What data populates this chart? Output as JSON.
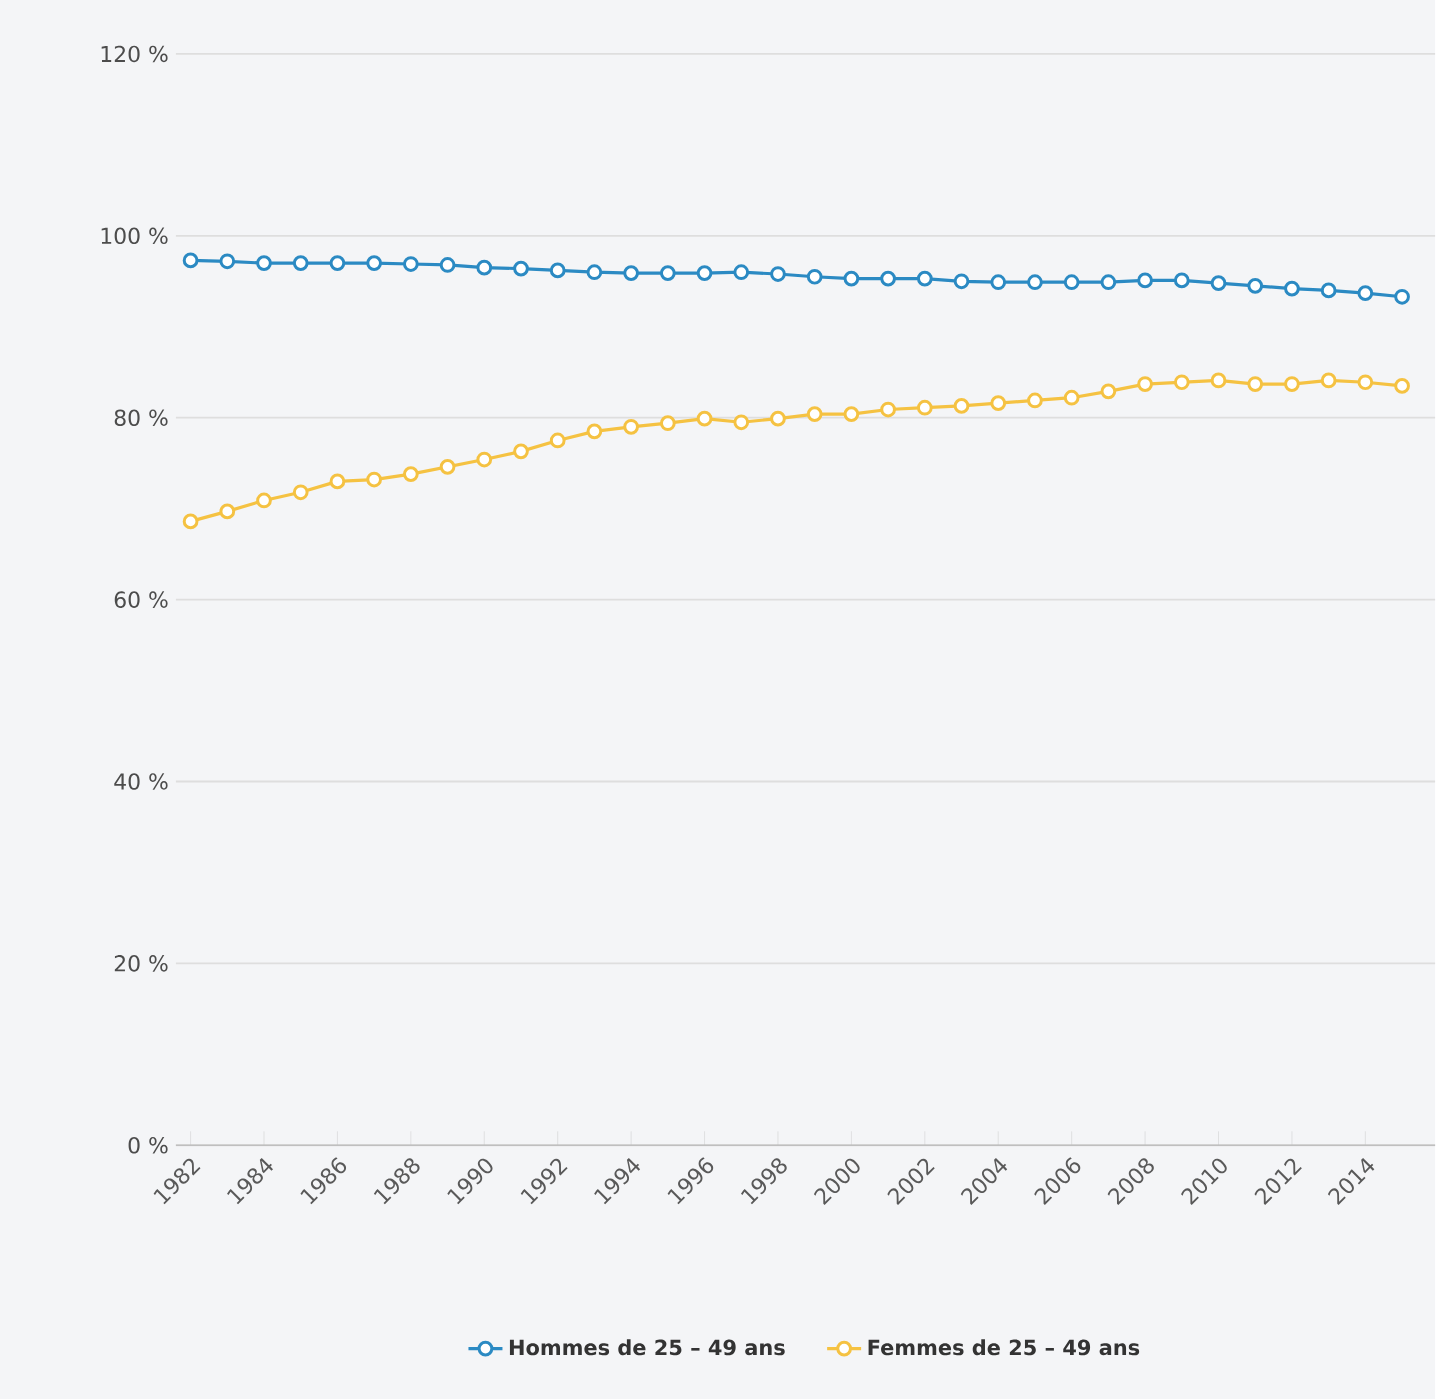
{
  "chart_data": {
    "type": "line",
    "x": [
      1982,
      1983,
      1984,
      1985,
      1986,
      1987,
      1988,
      1989,
      1990,
      1991,
      1992,
      1993,
      1994,
      1995,
      1996,
      1997,
      1998,
      1999,
      2000,
      2001,
      2002,
      2003,
      2004,
      2005,
      2006,
      2007,
      2008,
      2009,
      2010,
      2011,
      2012,
      2013,
      2014,
      2015
    ],
    "series": [
      {
        "name": "Hommes de 25 – 49 ans",
        "color": "#2b8ac3",
        "values": [
          97.3,
          97.2,
          97.0,
          97.0,
          97.0,
          97.0,
          96.9,
          96.8,
          96.5,
          96.4,
          96.2,
          96.0,
          95.9,
          95.9,
          95.9,
          96.0,
          95.8,
          95.5,
          95.3,
          95.3,
          95.3,
          95.0,
          94.9,
          94.9,
          94.9,
          94.9,
          95.1,
          95.1,
          94.8,
          94.5,
          94.2,
          94.0,
          93.7,
          93.3
        ]
      },
      {
        "name": "Femmes de 25 – 49 ans",
        "color": "#f5c242",
        "values": [
          68.6,
          69.7,
          70.9,
          71.8,
          73.0,
          73.2,
          73.8,
          74.6,
          75.4,
          76.3,
          77.5,
          78.5,
          79.0,
          79.4,
          79.9,
          79.5,
          79.9,
          80.4,
          80.4,
          80.9,
          81.1,
          81.3,
          81.6,
          81.9,
          82.2,
          82.9,
          83.7,
          83.9,
          84.1,
          83.7,
          83.7,
          84.1,
          83.9,
          83.5
        ]
      }
    ],
    "xlim": [
      1981.6,
      2015.9
    ],
    "xticks": [
      1982,
      1984,
      1986,
      1988,
      1990,
      1992,
      1994,
      1996,
      1998,
      2000,
      2002,
      2004,
      2006,
      2008,
      2010,
      2012,
      2014
    ],
    "ylim": [
      0,
      120
    ],
    "yticks": [
      {
        "value": 0,
        "label": "0 %"
      },
      {
        "value": 20,
        "label": "20 %"
      },
      {
        "value": 40,
        "label": "40 %"
      },
      {
        "value": 60,
        "label": "60 %"
      },
      {
        "value": 80,
        "label": "80 %"
      },
      {
        "value": 100,
        "label": "100 %"
      },
      {
        "value": 120,
        "label": "120 %"
      }
    ],
    "grid": "y",
    "legend": "bottom",
    "marker": "circle",
    "line_style": "solid"
  }
}
